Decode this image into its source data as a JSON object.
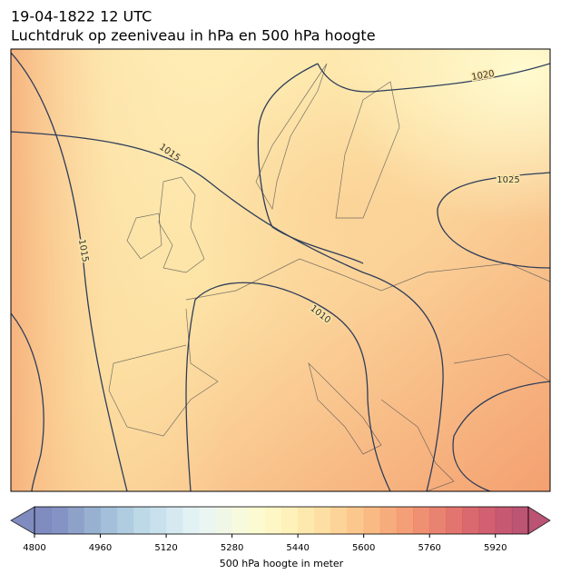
{
  "title": [
    "19-04-1822 12 UTC",
    "Luchtdruk op zeeniveau in hPa en 500 hPa hoogte"
  ],
  "map": {
    "contour_labels": [
      1020,
      1025,
      1015,
      1015,
      1010
    ]
  },
  "colorbar": {
    "label": "500 hPa hoogte in meter",
    "lim": [
      4800,
      6000
    ],
    "ticks": [
      4800,
      4960,
      5120,
      5280,
      5440,
      5600,
      5760,
      5920
    ],
    "colors": [
      "#6a77b5",
      "#6e80ba",
      "#7a90c0",
      "#87a3c8",
      "#94b4d2",
      "#a2c3db",
      "#b1d1e2",
      "#c0dcea",
      "#cfe5ef",
      "#dceef2",
      "#e7f3ef",
      "#eff6e2",
      "#f6f9d6",
      "#fbf9c8",
      "#fef6bb",
      "#feeeae",
      "#fde4a0",
      "#fdd893",
      "#fccb86",
      "#fbbd79",
      "#f9ae6e",
      "#f69e66",
      "#f28e60",
      "#ec7d5b",
      "#e56d58",
      "#dd5d56",
      "#d44f56",
      "#c94458",
      "#bd3c5a",
      "#b0365b"
    ]
  }
}
